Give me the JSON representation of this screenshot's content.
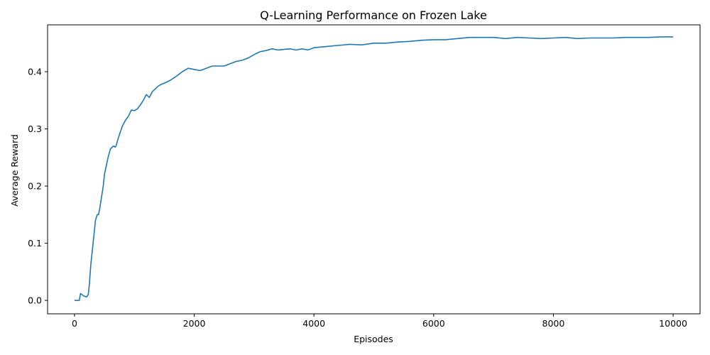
{
  "chart_data": {
    "type": "line",
    "title": "Q-Learning Performance on Frozen Lake",
    "xlabel": "Episodes",
    "ylabel": "Average Reward",
    "xlim": [
      -450,
      10450
    ],
    "ylim": [
      -0.0235,
      0.482
    ],
    "xticks": [
      0,
      2000,
      4000,
      6000,
      8000,
      10000
    ],
    "xtick_labels": [
      "0",
      "2000",
      "4000",
      "6000",
      "8000",
      "10000"
    ],
    "yticks": [
      0.0,
      0.1,
      0.2,
      0.3,
      0.4
    ],
    "ytick_labels": [
      "0.0",
      "0.1",
      "0.2",
      "0.3",
      "0.4"
    ],
    "grid": false,
    "legend": "none",
    "line_color": "#1f77b4",
    "series": [
      {
        "x": [
          0,
          60,
          80,
          100,
          150,
          200,
          230,
          250,
          270,
          290,
          310,
          330,
          350,
          380,
          400,
          420,
          450,
          480,
          500,
          530,
          560,
          600,
          650,
          680,
          700,
          720,
          750,
          800,
          850,
          900,
          950,
          1000,
          1050,
          1100,
          1150,
          1200,
          1250,
          1300,
          1350,
          1400,
          1450,
          1500,
          1600,
          1700,
          1800,
          1900,
          2000,
          2100,
          2200,
          2300,
          2400,
          2500,
          2600,
          2700,
          2800,
          2900,
          3000,
          3100,
          3200,
          3300,
          3400,
          3500,
          3600,
          3700,
          3800,
          3900,
          4000,
          4200,
          4400,
          4600,
          4800,
          5000,
          5200,
          5400,
          5600,
          5800,
          6000,
          6200,
          6400,
          6600,
          6800,
          7000,
          7200,
          7400,
          7600,
          7800,
          8000,
          8200,
          8400,
          8600,
          8800,
          9000,
          9200,
          9400,
          9600,
          9800,
          10000
        ],
        "y": [
          0.0,
          0.0,
          0.0,
          0.012,
          0.008,
          0.006,
          0.01,
          0.03,
          0.06,
          0.08,
          0.1,
          0.12,
          0.14,
          0.15,
          0.15,
          0.16,
          0.18,
          0.2,
          0.22,
          0.235,
          0.25,
          0.265,
          0.27,
          0.268,
          0.272,
          0.28,
          0.29,
          0.305,
          0.315,
          0.322,
          0.333,
          0.332,
          0.335,
          0.342,
          0.35,
          0.36,
          0.355,
          0.365,
          0.37,
          0.375,
          0.378,
          0.38,
          0.385,
          0.392,
          0.4,
          0.406,
          0.404,
          0.402,
          0.406,
          0.41,
          0.41,
          0.41,
          0.414,
          0.418,
          0.42,
          0.424,
          0.43,
          0.435,
          0.437,
          0.44,
          0.438,
          0.439,
          0.44,
          0.438,
          0.44,
          0.438,
          0.442,
          0.444,
          0.446,
          0.448,
          0.447,
          0.45,
          0.45,
          0.452,
          0.453,
          0.455,
          0.456,
          0.456,
          0.458,
          0.46,
          0.46,
          0.46,
          0.458,
          0.46,
          0.459,
          0.458,
          0.459,
          0.46,
          0.458,
          0.459,
          0.459,
          0.459,
          0.46,
          0.46,
          0.46,
          0.461,
          0.461
        ]
      }
    ]
  }
}
